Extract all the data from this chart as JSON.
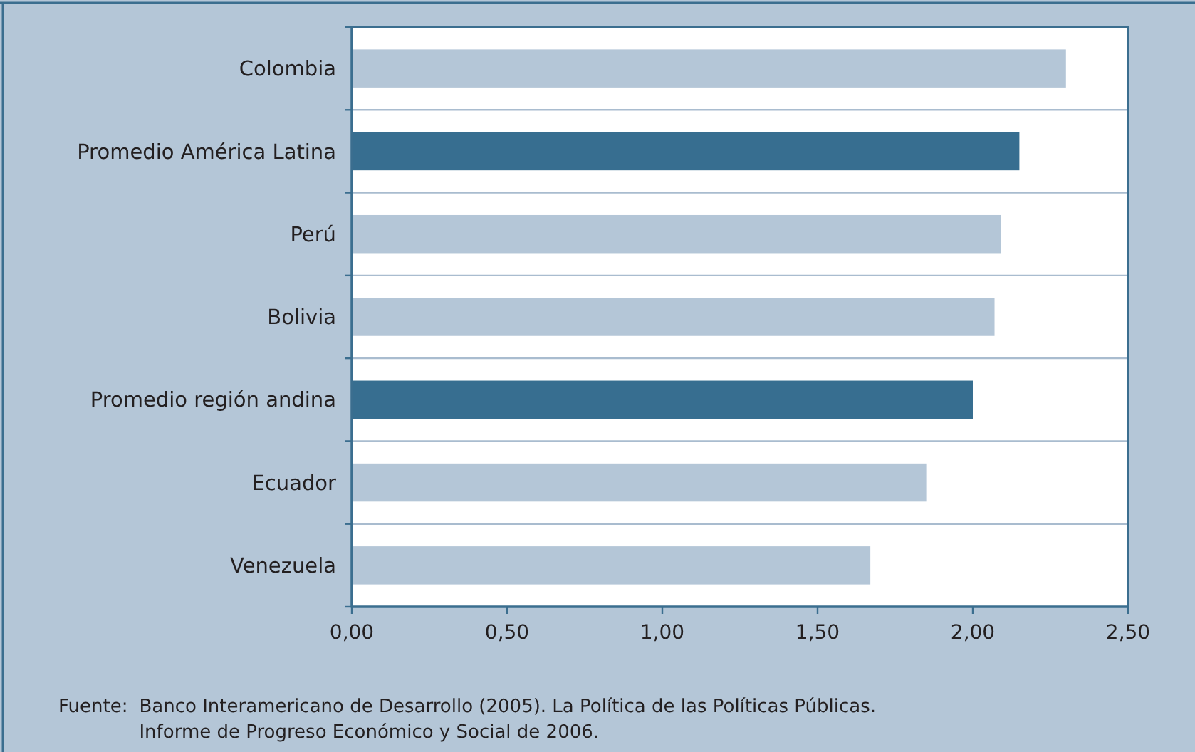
{
  "chart_data": {
    "type": "bar",
    "orientation": "horizontal",
    "categories": [
      "Colombia",
      "Promedio América Latina",
      "Perú",
      "Bolivia",
      "Promedio región andina",
      "Ecuador",
      "Venezuela"
    ],
    "values": [
      2.3,
      2.15,
      2.09,
      2.07,
      2.0,
      1.85,
      1.67
    ],
    "colors": [
      "#b4c6d7",
      "#376e90",
      "#b4c6d7",
      "#b4c6d7",
      "#376e90",
      "#b4c6d7",
      "#b4c6d7"
    ],
    "xlim": [
      0,
      2.5
    ],
    "xticks": [
      {
        "value": 0,
        "label": "0,00"
      },
      {
        "value": 0.5,
        "label": "0,50"
      },
      {
        "value": 1,
        "label": "1,00"
      },
      {
        "value": 1.5,
        "label": "1,50"
      },
      {
        "value": 2,
        "label": "2,00"
      },
      {
        "value": 2.5,
        "label": "2,50"
      }
    ],
    "grid": "y",
    "annotations": [
      "Fuente: Banco Interamericano de Desarrollo (2005). La Política de las Políticas Públicas.",
      "Informe de Progreso Económico y Social de 2006."
    ]
  }
}
